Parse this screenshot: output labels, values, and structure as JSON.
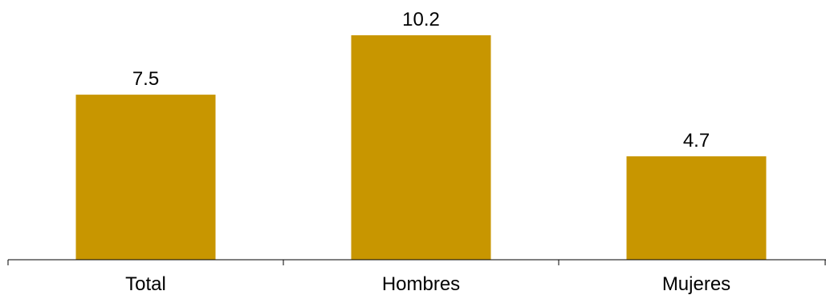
{
  "chart_data": {
    "type": "bar",
    "categories": [
      "Total",
      "Hombres",
      "Mujeres"
    ],
    "values": [
      7.5,
      10.2,
      4.7
    ],
    "data_labels": [
      "7.5",
      "10.2",
      "4.7"
    ],
    "title": "",
    "xlabel": "",
    "ylabel": "",
    "ylim": [
      0,
      11
    ],
    "grid": false,
    "legend": "none",
    "colors": {
      "bar": "#C89600",
      "axis": "#000000",
      "text": "#000000",
      "background": "#FFFFFF"
    }
  }
}
